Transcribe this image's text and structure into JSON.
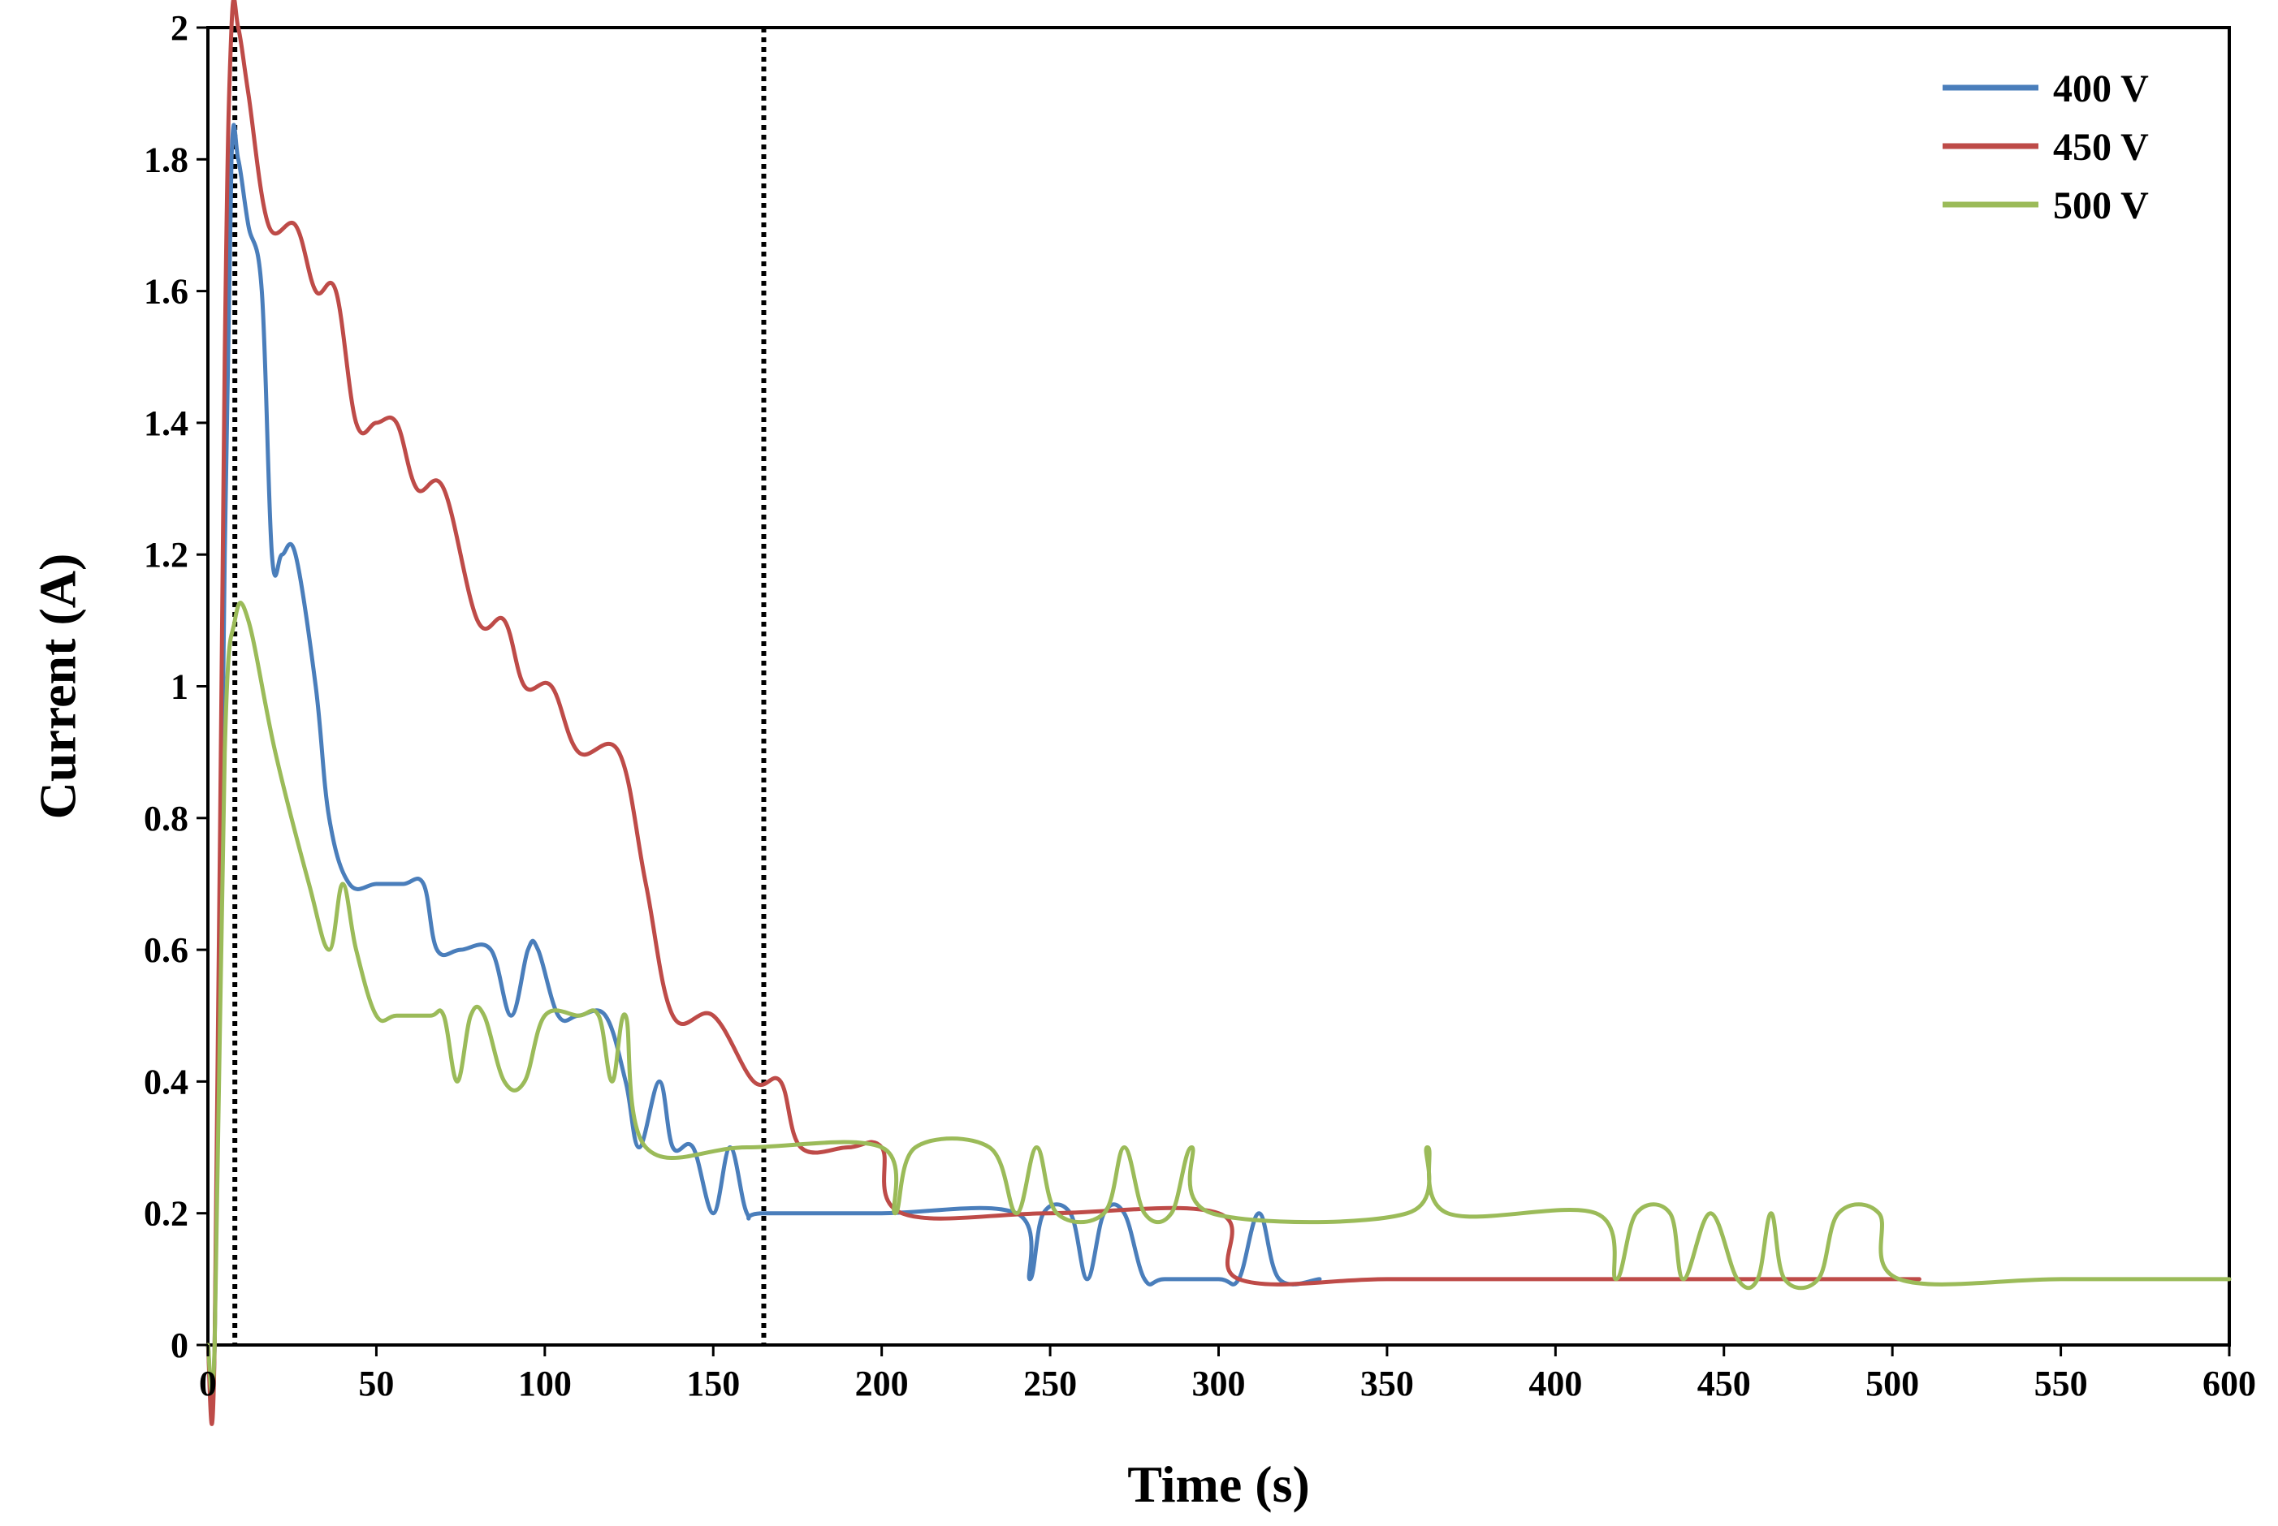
{
  "chart_data": {
    "type": "line",
    "title": "",
    "xlabel": "Time (s)",
    "ylabel": "Current (A)",
    "xlim": [
      0,
      600
    ],
    "ylim": [
      0,
      2
    ],
    "xticks": [
      "0",
      "50",
      "100",
      "150",
      "200",
      "250",
      "300",
      "350",
      "400",
      "450",
      "500",
      "550",
      "600"
    ],
    "yticks": [
      "0",
      "0.2",
      "0.4",
      "0.6",
      "0.8",
      "1",
      "1.2",
      "1.4",
      "1.6",
      "1.8",
      "2"
    ],
    "grid": false,
    "legend_position": "top-right",
    "reference_lines": [
      {
        "axis": "x",
        "value": 8,
        "style": "dotted"
      },
      {
        "axis": "x",
        "value": 165,
        "style": "dotted"
      }
    ],
    "series": [
      {
        "name": "400 V",
        "color": "#4a7ebb",
        "points": [
          [
            0,
            0
          ],
          [
            2,
            0
          ],
          [
            5,
            1.2
          ],
          [
            7,
            1.8
          ],
          [
            9,
            1.8
          ],
          [
            12,
            1.7
          ],
          [
            16,
            1.6
          ],
          [
            19,
            1.2
          ],
          [
            22,
            1.2
          ],
          [
            26,
            1.2
          ],
          [
            32,
            1.0
          ],
          [
            36,
            0.8
          ],
          [
            42,
            0.7
          ],
          [
            50,
            0.7
          ],
          [
            58,
            0.7
          ],
          [
            64,
            0.7
          ],
          [
            68,
            0.6
          ],
          [
            75,
            0.6
          ],
          [
            84,
            0.6
          ],
          [
            90,
            0.5
          ],
          [
            95,
            0.6
          ],
          [
            98,
            0.6
          ],
          [
            104,
            0.5
          ],
          [
            110,
            0.5
          ],
          [
            118,
            0.5
          ],
          [
            124,
            0.4
          ],
          [
            128,
            0.3
          ],
          [
            134,
            0.4
          ],
          [
            138,
            0.3
          ],
          [
            144,
            0.3
          ],
          [
            150,
            0.2
          ],
          [
            155,
            0.3
          ],
          [
            160,
            0.2
          ],
          [
            165,
            0.2
          ],
          [
            200,
            0.2
          ],
          [
            240,
            0.2
          ],
          [
            244,
            0.1
          ],
          [
            248,
            0.2
          ],
          [
            256,
            0.2
          ],
          [
            261,
            0.1
          ],
          [
            266,
            0.2
          ],
          [
            272,
            0.2
          ],
          [
            278,
            0.1
          ],
          [
            284,
            0.1
          ],
          [
            300,
            0.1
          ],
          [
            306,
            0.1
          ],
          [
            312,
            0.2
          ],
          [
            318,
            0.1
          ],
          [
            330,
            0.1
          ]
        ]
      },
      {
        "name": "450 V",
        "color": "#be4b48",
        "points": [
          [
            0,
            0
          ],
          [
            2,
            0
          ],
          [
            5,
            1.5
          ],
          [
            7,
            2.0
          ],
          [
            9,
            2.0
          ],
          [
            12,
            1.9
          ],
          [
            18,
            1.7
          ],
          [
            26,
            1.7
          ],
          [
            32,
            1.6
          ],
          [
            38,
            1.6
          ],
          [
            44,
            1.4
          ],
          [
            50,
            1.4
          ],
          [
            56,
            1.4
          ],
          [
            62,
            1.3
          ],
          [
            70,
            1.3
          ],
          [
            80,
            1.1
          ],
          [
            88,
            1.1
          ],
          [
            94,
            1.0
          ],
          [
            102,
            1.0
          ],
          [
            110,
            0.9
          ],
          [
            122,
            0.9
          ],
          [
            130,
            0.7
          ],
          [
            138,
            0.5
          ],
          [
            150,
            0.5
          ],
          [
            162,
            0.4
          ],
          [
            170,
            0.4
          ],
          [
            176,
            0.3
          ],
          [
            190,
            0.3
          ],
          [
            200,
            0.3
          ],
          [
            206,
            0.2
          ],
          [
            250,
            0.2
          ],
          [
            300,
            0.2
          ],
          [
            306,
            0.1
          ],
          [
            350,
            0.1
          ],
          [
            400,
            0.1
          ],
          [
            450,
            0.1
          ],
          [
            500,
            0.1
          ],
          [
            508,
            0.1
          ]
        ]
      },
      {
        "name": "500 V",
        "color": "#9bbb59",
        "points": [
          [
            0,
            0
          ],
          [
            2,
            0
          ],
          [
            5,
            0.9
          ],
          [
            8,
            1.1
          ],
          [
            12,
            1.1
          ],
          [
            20,
            0.9
          ],
          [
            30,
            0.7
          ],
          [
            36,
            0.6
          ],
          [
            40,
            0.7
          ],
          [
            44,
            0.6
          ],
          [
            50,
            0.5
          ],
          [
            56,
            0.5
          ],
          [
            66,
            0.5
          ],
          [
            70,
            0.5
          ],
          [
            74,
            0.4
          ],
          [
            78,
            0.5
          ],
          [
            82,
            0.5
          ],
          [
            88,
            0.4
          ],
          [
            94,
            0.4
          ],
          [
            100,
            0.5
          ],
          [
            110,
            0.5
          ],
          [
            116,
            0.5
          ],
          [
            120,
            0.4
          ],
          [
            124,
            0.5
          ],
          [
            130,
            0.3
          ],
          [
            160,
            0.3
          ],
          [
            200,
            0.3
          ],
          [
            204,
            0.2
          ],
          [
            210,
            0.3
          ],
          [
            232,
            0.3
          ],
          [
            240,
            0.2
          ],
          [
            246,
            0.3
          ],
          [
            252,
            0.2
          ],
          [
            266,
            0.2
          ],
          [
            272,
            0.3
          ],
          [
            278,
            0.2
          ],
          [
            286,
            0.2
          ],
          [
            292,
            0.3
          ],
          [
            298,
            0.2
          ],
          [
            356,
            0.2
          ],
          [
            362,
            0.3
          ],
          [
            368,
            0.2
          ],
          [
            412,
            0.2
          ],
          [
            418,
            0.1
          ],
          [
            424,
            0.2
          ],
          [
            434,
            0.2
          ],
          [
            438,
            0.1
          ],
          [
            446,
            0.2
          ],
          [
            454,
            0.1
          ],
          [
            460,
            0.1
          ],
          [
            464,
            0.2
          ],
          [
            468,
            0.1
          ],
          [
            478,
            0.1
          ],
          [
            484,
            0.2
          ],
          [
            496,
            0.2
          ],
          [
            502,
            0.1
          ],
          [
            550,
            0.1
          ],
          [
            600,
            0.1
          ]
        ]
      }
    ]
  }
}
